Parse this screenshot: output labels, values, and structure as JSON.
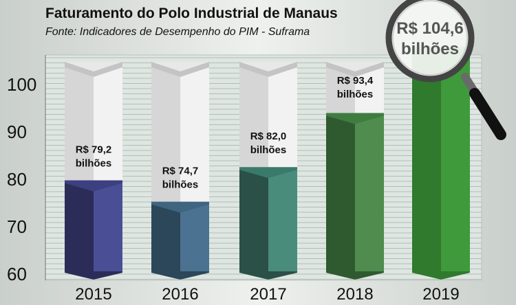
{
  "chart_data": {
    "type": "bar",
    "title": "Faturamento do Polo Industrial de Manaus",
    "subtitle": "Fonte: Indicadores de Desempenho do PIM - Suframa",
    "categories": [
      "2015",
      "2016",
      "2017",
      "2018",
      "2019"
    ],
    "values": [
      79.2,
      74.7,
      82.0,
      93.4,
      104.6
    ],
    "value_labels": [
      [
        "R$ 79,2",
        "bilhões"
      ],
      [
        "R$ 74,7",
        "bilhões"
      ],
      [
        "R$ 82,0",
        "bilhões"
      ],
      [
        "R$ 93,4",
        "bilhões"
      ],
      [
        "R$ 104,6",
        "bilhões"
      ]
    ],
    "yticks": [
      "60",
      "70",
      "80",
      "90",
      "100"
    ],
    "ylim": [
      60,
      104.6
    ],
    "xlabel": "",
    "ylabel": "",
    "grid": true,
    "legend": "none",
    "colors": [
      {
        "left": "#2b2d58",
        "right": "#4a4f95",
        "top": "#3c3f80"
      },
      {
        "left": "#2c4759",
        "right": "#4b7290",
        "top": "#3f6580"
      },
      {
        "left": "#2a5048",
        "right": "#4a8c7c",
        "top": "#3a7a6a"
      },
      {
        "left": "#2f5a30",
        "right": "#4f8c4e",
        "top": "#3f7c40"
      },
      {
        "left": "#2f7a2d",
        "right": "#3f9a3c",
        "top": "#3a8f38"
      }
    ],
    "empty_colors": {
      "left": "#d6d6d6",
      "right": "#f2f2f2",
      "top": "#c4c4c4"
    }
  }
}
